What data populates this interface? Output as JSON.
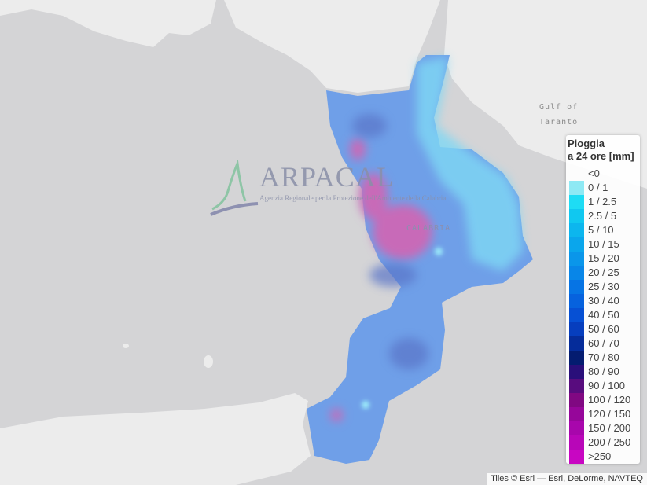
{
  "map": {
    "labels": {
      "gulf_line1": "Gulf of",
      "gulf_line2": "Taranto",
      "region": "CALABRIA"
    },
    "colors": {
      "sea": "#d4d4d6",
      "land": "#ececec",
      "rain_base": "#6f9fe8",
      "rain_high": "#c86ab8"
    }
  },
  "logo": {
    "name": "ARPACAL",
    "subtitle": "Agenzia Regionale per la Protezione dell'Ambiente della Calabria"
  },
  "legend": {
    "title_line1": "Pioggia",
    "title_line2": "a 24 ore [mm]",
    "items": [
      {
        "label": "<0",
        "color": ""
      },
      {
        "label": "0 / 1",
        "color": "#8ee9f4"
      },
      {
        "label": "1 / 2.5",
        "color": "#1edcf4"
      },
      {
        "label": "2.5 / 5",
        "color": "#10c8f0"
      },
      {
        "label": "5 / 10",
        "color": "#0cb6ee"
      },
      {
        "label": "10 / 15",
        "color": "#0aa6ec"
      },
      {
        "label": "15 / 20",
        "color": "#0a96ea"
      },
      {
        "label": "20 / 25",
        "color": "#0886e8"
      },
      {
        "label": "25 / 30",
        "color": "#0674e4"
      },
      {
        "label": "30 / 40",
        "color": "#0662de"
      },
      {
        "label": "40 / 50",
        "color": "#0650d4"
      },
      {
        "label": "50 / 60",
        "color": "#063ebe"
      },
      {
        "label": "60 / 70",
        "color": "#052c9a"
      },
      {
        "label": "70 / 80",
        "color": "#041c70"
      },
      {
        "label": "80 / 90",
        "color": "#2a0f7a"
      },
      {
        "label": "90 / 100",
        "color": "#580c7e"
      },
      {
        "label": "100 / 120",
        "color": "#800882"
      },
      {
        "label": "120 / 150",
        "color": "#96069a"
      },
      {
        "label": "150 / 200",
        "color": "#a806ac"
      },
      {
        "label": "200 / 250",
        "color": "#b806b8"
      },
      {
        "label": ">250",
        "color": "#c806c2"
      }
    ]
  },
  "attribution": "Tiles © Esri — Esri, DeLorme, NAVTEQ"
}
